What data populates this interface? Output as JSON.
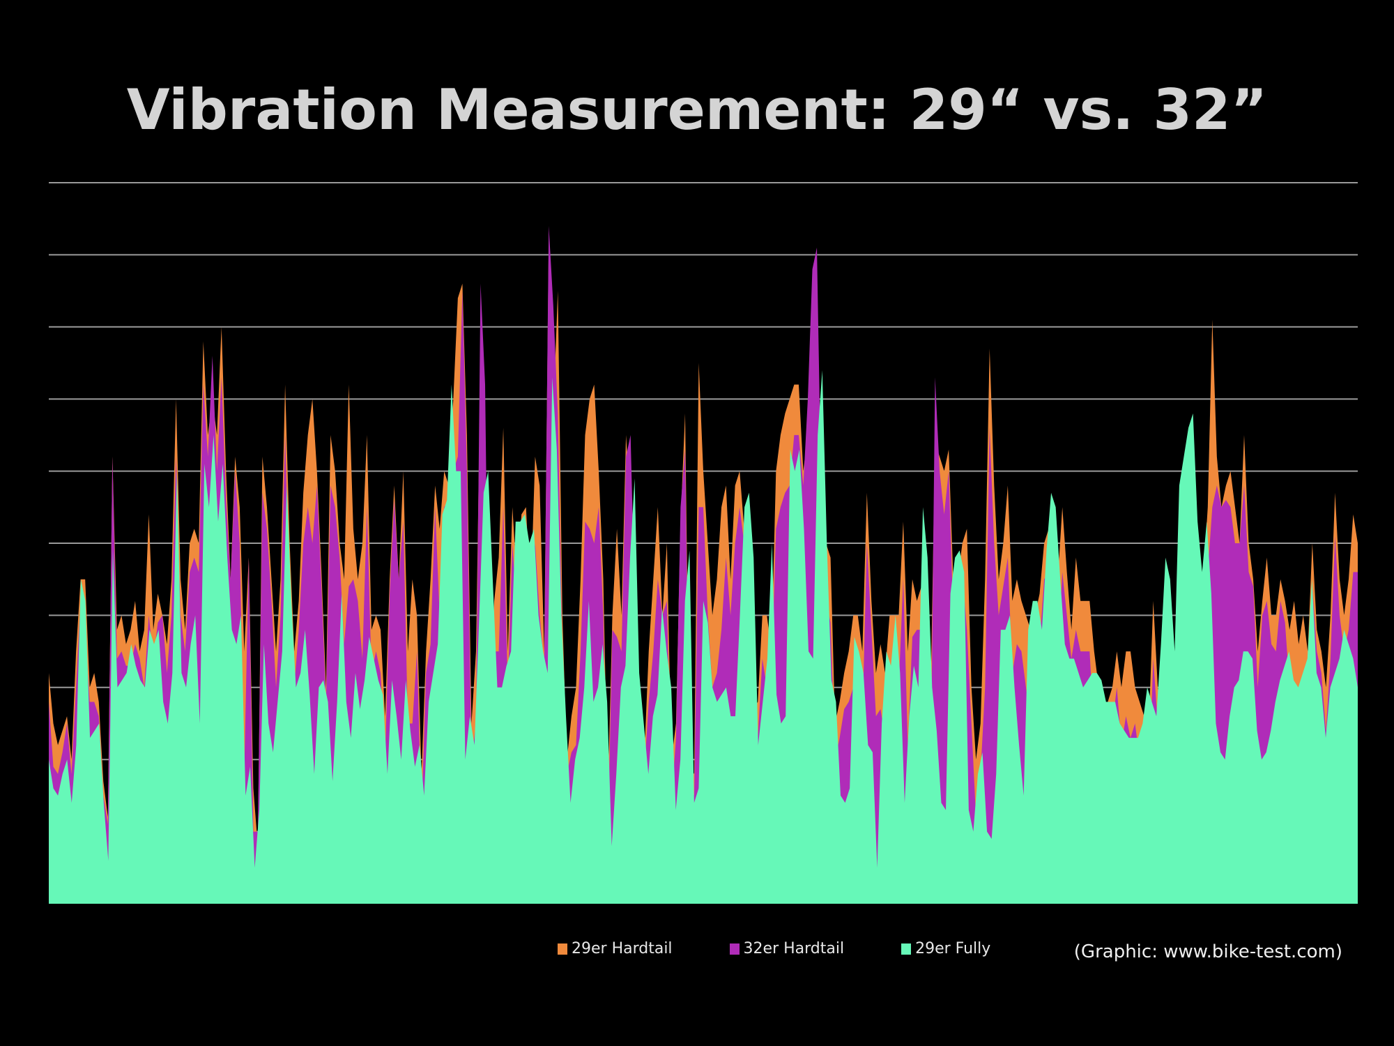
{
  "chart_data": {
    "type": "area",
    "title": "Vibration Measurement: 29“ vs. 32”",
    "xlabel": "",
    "ylabel": "",
    "ylim": [
      0,
      10
    ],
    "grid": true,
    "legend_position": "bottom",
    "credit": "(Graphic: www.bike-test.com)",
    "series": [
      {
        "name": "29er Hardtail",
        "color": "#f08a3c",
        "values": [
          3.2,
          2.5,
          2.2,
          2.4,
          2.6,
          2.0,
          3.5,
          4.5,
          4.5,
          3.0,
          3.2,
          2.8,
          1.7,
          1.2,
          6.2,
          3.8,
          4.0,
          3.6,
          3.8,
          4.2,
          3.5,
          3.8,
          5.4,
          3.8,
          4.3,
          4.0,
          3.6,
          4.5,
          7.0,
          4.5,
          3.8,
          5.0,
          5.2,
          5.0,
          7.8,
          6.5,
          7.0,
          6.5,
          8.0,
          6.0,
          4.5,
          6.2,
          5.5,
          3.5,
          4.8,
          1.6,
          0.8,
          6.2,
          5.5,
          4.5,
          3.5,
          4.5,
          7.2,
          5.0,
          3.5,
          4.2,
          5.7,
          6.5,
          7.0,
          6.0,
          4.6,
          3.0,
          6.5,
          6.0,
          5.0,
          4.5,
          7.2,
          5.2,
          4.5,
          5.0,
          6.5,
          3.8,
          4.0,
          3.8,
          2.6,
          4.5,
          5.8,
          4.5,
          6.0,
          3.5,
          4.5,
          4.0,
          1.8,
          3.5,
          4.5,
          5.8,
          5.2,
          6.0,
          5.8,
          7.0,
          8.4,
          8.6,
          6.5,
          2.5,
          3.5,
          7.6,
          6.2,
          2.5,
          4.2,
          4.8,
          6.6,
          3.5,
          5.5,
          4.5,
          5.4,
          5.5,
          4.2,
          6.2,
          5.8,
          3.5,
          9.2,
          6.8,
          8.5,
          4.0,
          2.0,
          2.6,
          3.0,
          4.5,
          6.5,
          7.0,
          7.2,
          6.0,
          4.5,
          1.5,
          4.0,
          5.2,
          4.0,
          6.5,
          5.5,
          4.0,
          3.0,
          2.0,
          3.5,
          4.5,
          5.5,
          4.0,
          5.0,
          2.0,
          2.5,
          5.3,
          6.8,
          1.9,
          1.8,
          7.5,
          6.0,
          5.0,
          4.0,
          4.5,
          5.5,
          5.8,
          4.5,
          5.8,
          6.0,
          5.2,
          4.5,
          2.7,
          2.8,
          4.0,
          4.0,
          3.5,
          6.0,
          6.5,
          6.8,
          7.0,
          7.2,
          7.2,
          6.0,
          6.5,
          8.1,
          8.5,
          5.7,
          5.0,
          4.8,
          2.5,
          2.8,
          3.2,
          3.5,
          4.0,
          4.0,
          3.5,
          5.7,
          4.2,
          3.2,
          3.6,
          3.2,
          4.0,
          4.0,
          4.0,
          5.3,
          3.5,
          4.5,
          4.2,
          4.4,
          3.0,
          2.8,
          6.4,
          6.2,
          6.0,
          6.3,
          4.5,
          4.5,
          5.0,
          5.2,
          3.0,
          2.0,
          2.5,
          4.5,
          7.7,
          5.8,
          4.5,
          5.0,
          5.8,
          4.2,
          4.5,
          4.2,
          4.0,
          3.8,
          4.0,
          4.3,
          5.0,
          5.2,
          4.0,
          4.5,
          5.5,
          4.6,
          3.8,
          4.8,
          4.2,
          4.2,
          4.2,
          3.5,
          3.0,
          2.8,
          2.8,
          3.0,
          3.5,
          3.0,
          3.5,
          3.5,
          3.0,
          2.8,
          2.6,
          2.4,
          4.2,
          3.0,
          2.5,
          2.7,
          3.2,
          3.6,
          4.2,
          4.0,
          3.8,
          3.5,
          4.2,
          4.5,
          5.5,
          8.1,
          6.2,
          5.5,
          5.8,
          6.0,
          5.5,
          5.0,
          6.5,
          5.0,
          4.5,
          3.5,
          4.2,
          4.8,
          4.0,
          4.0,
          4.5,
          4.2,
          3.8,
          4.2,
          3.6,
          4.0,
          3.5,
          5.0,
          3.8,
          3.5,
          3.0,
          4.0,
          5.7,
          4.5,
          4.0,
          4.5,
          5.4,
          5.0
        ]
      },
      {
        "name": "32er Hardtail",
        "color": "#b02cb8",
        "values": [
          2.8,
          1.9,
          1.8,
          2.1,
          2.5,
          1.8,
          3.0,
          4.2,
          3.8,
          2.8,
          2.8,
          2.6,
          1.5,
          1.1,
          6.2,
          3.4,
          3.5,
          3.3,
          3.3,
          3.6,
          3.4,
          3.0,
          4.0,
          3.4,
          3.9,
          4.0,
          3.2,
          4.0,
          6.2,
          4.0,
          3.5,
          4.6,
          4.8,
          4.6,
          7.2,
          6.2,
          7.6,
          6.0,
          7.3,
          5.6,
          4.5,
          6.0,
          5.0,
          1.8,
          4.8,
          1.0,
          1.0,
          5.7,
          5.2,
          4.2,
          3.0,
          4.0,
          6.5,
          4.0,
          3.0,
          3.8,
          5.0,
          5.5,
          5.0,
          5.8,
          4.4,
          2.8,
          5.8,
          5.5,
          4.8,
          3.6,
          4.4,
          4.5,
          4.2,
          3.4,
          5.5,
          3.2,
          3.5,
          3.2,
          2.0,
          4.3,
          5.6,
          4.5,
          5.3,
          2.5,
          2.5,
          3.5,
          1.2,
          3.2,
          3.6,
          5.5,
          4.0,
          5.5,
          5.6,
          6.0,
          6.2,
          8.5,
          6.0,
          2.0,
          2.5,
          8.6,
          7.2,
          2.0,
          3.5,
          3.5,
          5.5,
          3.0,
          5.0,
          4.0,
          4.5,
          4.5,
          3.5,
          5.0,
          4.0,
          3.3,
          9.4,
          8.3,
          6.8,
          3.5,
          1.8,
          2.1,
          2.2,
          3.5,
          5.3,
          5.2,
          5.0,
          5.5,
          4.0,
          0.9,
          3.8,
          3.7,
          3.5,
          6.2,
          6.5,
          4.0,
          2.5,
          1.8,
          2.8,
          3.5,
          4.5,
          4.0,
          4.2,
          1.4,
          2.3,
          5.5,
          6.3,
          1.7,
          1.5,
          5.5,
          5.5,
          4.0,
          3.0,
          3.2,
          3.8,
          4.8,
          4.0,
          5.0,
          5.5,
          5.0,
          5.0,
          1.7,
          2.3,
          3.4,
          3.0,
          3.0,
          5.2,
          5.5,
          5.7,
          5.8,
          6.5,
          6.5,
          5.8,
          7.0,
          8.8,
          9.1,
          5.5,
          4.2,
          3.9,
          2.0,
          2.3,
          2.7,
          2.8,
          3.0,
          2.8,
          2.5,
          5.0,
          3.8,
          2.6,
          2.7,
          2.3,
          2.3,
          2.5,
          3.0,
          4.5,
          2.2,
          3.7,
          3.8,
          3.8,
          1.3,
          1.5,
          7.3,
          6.0,
          5.4,
          6.0,
          4.0,
          4.0,
          4.6,
          3.8,
          2.5,
          1.2,
          1.8,
          3.0,
          6.6,
          5.0,
          4.0,
          4.4,
          4.8,
          3.2,
          3.6,
          3.5,
          3.0,
          2.5,
          3.6,
          3.6,
          4.5,
          4.6,
          3.0,
          3.4,
          4.6,
          4.0,
          3.4,
          3.8,
          3.5,
          3.5,
          3.5,
          2.4,
          2.2,
          2.2,
          2.0,
          2.5,
          3.0,
          2.2,
          2.6,
          2.3,
          2.5,
          2.0,
          1.7,
          1.5,
          3.4,
          2.5,
          2.2,
          2.5,
          2.8,
          3.1,
          3.6,
          3.3,
          3.0,
          2.8,
          3.4,
          3.4,
          4.6,
          5.5,
          5.8,
          5.5,
          5.6,
          5.5,
          5.0,
          5.0,
          5.8,
          4.6,
          4.4,
          3.0,
          4.0,
          4.2,
          3.6,
          3.5,
          4.2,
          3.9,
          3.0,
          2.5,
          2.4,
          2.9,
          2.4,
          4.4,
          3.5,
          3.2,
          2.4,
          3.4,
          5.1,
          4.0,
          3.5,
          3.8,
          4.6,
          4.6
        ]
      },
      {
        "name": "29er Fully",
        "color": "#66f8b8",
        "values": [
          2.0,
          1.6,
          1.5,
          1.8,
          2.0,
          1.4,
          2.2,
          4.5,
          4.2,
          2.3,
          2.4,
          2.5,
          1.4,
          0.6,
          4.9,
          3.0,
          3.1,
          3.2,
          3.6,
          3.3,
          3.1,
          3.0,
          3.8,
          3.6,
          3.8,
          2.8,
          2.5,
          3.2,
          6.0,
          3.2,
          3.0,
          3.6,
          4.0,
          2.5,
          6.1,
          5.5,
          6.5,
          5.3,
          6.1,
          4.8,
          3.8,
          3.6,
          4.0,
          1.5,
          1.9,
          0.5,
          1.3,
          3.6,
          2.5,
          2.1,
          2.8,
          3.5,
          5.8,
          4.2,
          3.0,
          3.2,
          3.8,
          2.9,
          1.8,
          3.0,
          3.1,
          2.8,
          1.7,
          2.8,
          4.3,
          2.8,
          2.3,
          3.2,
          2.7,
          3.1,
          3.7,
          3.4,
          3.1,
          2.9,
          1.8,
          3.1,
          2.6,
          2.0,
          3.1,
          2.4,
          1.9,
          2.2,
          1.5,
          2.8,
          3.2,
          3.6,
          5.4,
          5.6,
          7.2,
          6.0,
          6.0,
          2.0,
          2.6,
          2.2,
          3.9,
          5.7,
          6.0,
          4.5,
          3.0,
          3.0,
          3.3,
          3.5,
          5.3,
          5.3,
          5.4,
          5.0,
          5.2,
          4.0,
          3.5,
          3.2,
          7.3,
          6.3,
          4.0,
          2.6,
          1.4,
          2.0,
          2.3,
          3.0,
          4.2,
          2.8,
          3.0,
          3.6,
          2.8,
          0.8,
          1.8,
          3.0,
          3.3,
          4.8,
          5.9,
          3.2,
          2.5,
          1.8,
          2.6,
          2.9,
          4.1,
          3.5,
          3.0,
          1.3,
          2.0,
          4.2,
          4.9,
          1.4,
          1.6,
          4.2,
          3.9,
          3.0,
          2.8,
          2.9,
          3.0,
          2.6,
          2.6,
          4.0,
          5.5,
          5.7,
          4.8,
          2.2,
          2.8,
          3.4,
          5.0,
          2.9,
          2.5,
          2.6,
          6.3,
          6.0,
          6.3,
          5.2,
          3.5,
          3.4,
          6.5,
          7.4,
          5.0,
          3.1,
          2.8,
          1.5,
          1.4,
          1.6,
          3.7,
          3.5,
          3.2,
          2.2,
          2.1,
          0.5,
          2.5,
          3.5,
          3.3,
          4.0,
          3.2,
          1.4,
          2.6,
          3.3,
          3.0,
          5.5,
          4.8,
          3.0,
          2.4,
          1.4,
          1.3,
          4.3,
          4.8,
          4.9,
          4.6,
          1.3,
          1.0,
          1.8,
          2.1,
          1.0,
          0.9,
          1.8,
          3.8,
          3.8,
          4.0,
          3.0,
          2.2,
          1.5,
          3.8,
          4.2,
          4.2,
          3.8,
          4.9,
          5.7,
          5.5,
          4.5,
          3.6,
          3.4,
          3.4,
          3.2,
          3.0,
          3.1,
          3.2,
          3.2,
          3.1,
          2.8,
          2.8,
          2.8,
          2.5,
          2.4,
          2.3,
          2.3,
          2.3,
          2.5,
          3.0,
          2.8,
          2.6,
          3.6,
          4.8,
          4.5,
          3.5,
          5.8,
          6.2,
          6.6,
          6.8,
          5.3,
          4.6,
          5.3,
          4.3,
          2.5,
          2.1,
          2.0,
          2.6,
          3.0,
          3.1,
          3.5,
          3.5,
          3.4,
          2.4,
          2.0,
          2.1,
          2.4,
          2.8,
          3.1,
          3.3,
          3.5,
          3.1,
          3.0,
          3.2,
          3.4,
          4.5,
          3.2,
          3.0,
          2.3,
          3.0,
          3.2,
          3.4,
          3.8,
          3.6,
          3.4,
          3.0
        ]
      }
    ]
  }
}
